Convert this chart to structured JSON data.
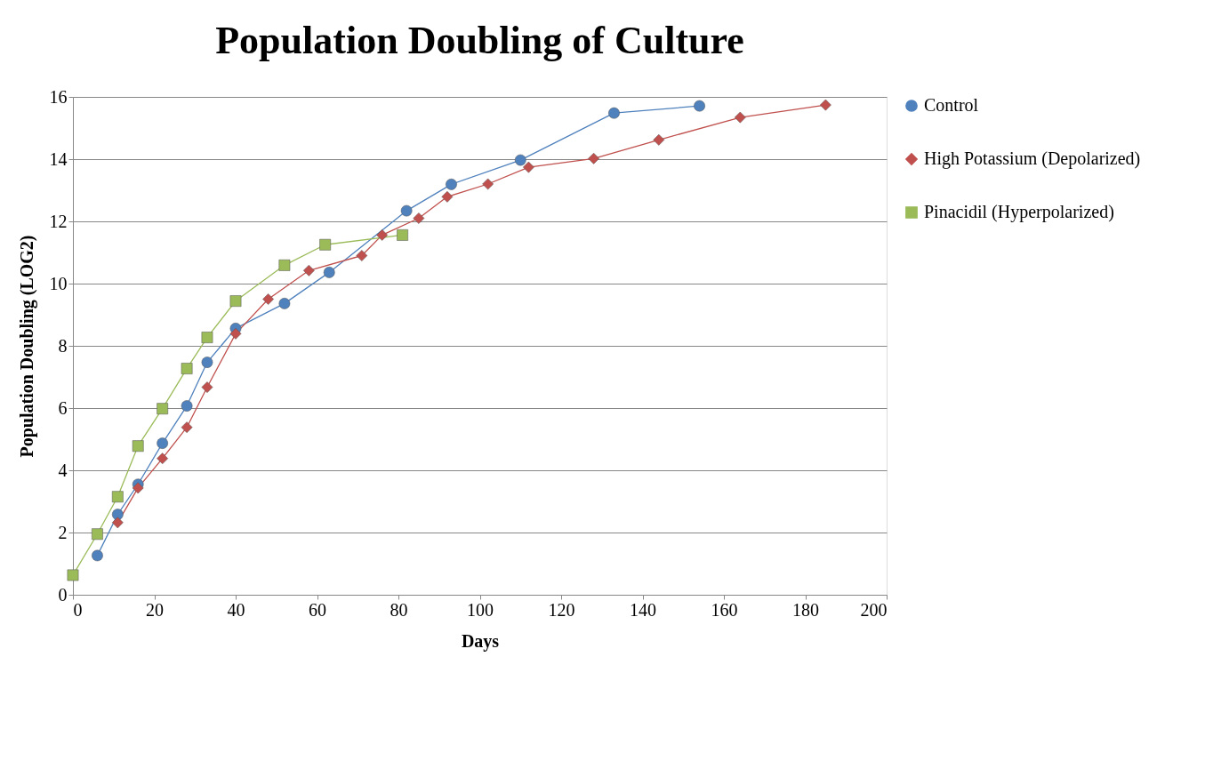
{
  "chart_data": {
    "type": "line",
    "title": "Population Doubling of Culture",
    "xlabel": "Days",
    "ylabel": "Population Doubling (LOG2)",
    "xlim": [
      0,
      200
    ],
    "xticks": [
      0,
      20,
      40,
      60,
      80,
      100,
      120,
      140,
      160,
      180,
      200
    ],
    "ylim": [
      0,
      16
    ],
    "yticks": [
      0,
      2,
      4,
      6,
      8,
      10,
      12,
      14,
      16
    ],
    "grid": "y",
    "legend": "right",
    "series": [
      {
        "name": "Control",
        "color": "#4f81bd",
        "marker": "circle",
        "x": [
          6,
          11,
          16,
          22,
          28,
          33,
          40,
          52,
          63,
          82,
          93,
          110,
          133,
          154
        ],
        "values": [
          1.26,
          2.58,
          3.55,
          4.87,
          6.07,
          7.47,
          8.56,
          9.36,
          10.36,
          12.34,
          13.19,
          13.97,
          15.48,
          15.71
        ]
      },
      {
        "name": "High Potassium (Depolarized)",
        "color": "#c0504d",
        "marker": "diamond",
        "x": [
          11,
          16,
          22,
          28,
          33,
          40,
          48,
          58,
          71,
          76,
          85,
          92,
          102,
          112,
          128,
          144,
          164,
          185
        ],
        "values": [
          2.32,
          3.43,
          4.38,
          5.38,
          6.67,
          8.39,
          9.5,
          10.42,
          10.9,
          11.56,
          12.1,
          12.79,
          13.2,
          13.74,
          14.02,
          14.62,
          15.34,
          15.74
        ]
      },
      {
        "name": "Pinacidil (Hyperpolarized)",
        "color": "#9bbb59",
        "marker": "square",
        "x": [
          0,
          6,
          11,
          16,
          22,
          28,
          33,
          40,
          52,
          62,
          81
        ],
        "values": [
          0.63,
          1.95,
          3.15,
          4.78,
          5.98,
          7.27,
          8.27,
          9.44,
          10.59,
          11.25,
          11.56
        ]
      }
    ]
  }
}
